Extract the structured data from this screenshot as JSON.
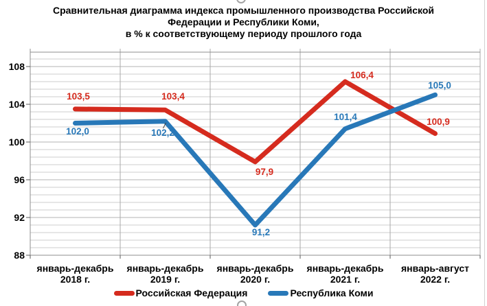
{
  "title": {
    "line1": "Сравнительная диаграмма индекса промышленного производства Российской",
    "line2": "Федерации и Республики Коми,",
    "line3": "в % к соответствующему периоду прошлого года"
  },
  "legend": [
    {
      "label": "Российская Федерация",
      "color": "#d52b1e"
    },
    {
      "label": "Республика Коми",
      "color": "#2878b8"
    }
  ],
  "chart_data": {
    "type": "line",
    "categories": [
      [
        "январь-декабрь",
        "2018 г."
      ],
      [
        "январь-декабрь",
        "2019 г."
      ],
      [
        "январь-декабрь",
        "2020 г."
      ],
      [
        "январь-декабрь",
        "2021 г."
      ],
      [
        "январь-август",
        "2022 г."
      ]
    ],
    "series": [
      {
        "name": "Российская Федерация",
        "color": "#d52b1e",
        "values": [
          103.5,
          103.4,
          97.9,
          106.4,
          100.9
        ],
        "labels": [
          "103,5",
          "103,4",
          "97,9",
          "106,4",
          "100,9"
        ]
      },
      {
        "name": "Республика Коми",
        "color": "#2878b8",
        "values": [
          102.0,
          102.2,
          91.2,
          101.4,
          105.0
        ],
        "labels": [
          "102,0",
          "102,2",
          "91,2",
          "101,4",
          "105,0"
        ]
      }
    ],
    "title": "Сравнительная диаграмма индекса промышленного производства Российской Федерации и Республики Коми, в % к соответствующему периоду прошлого года",
    "xlabel": "",
    "ylabel": "",
    "ylim": [
      88,
      110
    ],
    "yaxis": {
      "tick_labels": [
        "108",
        "104",
        "100",
        "96",
        "92",
        "88"
      ],
      "tick_values": [
        108,
        104,
        100,
        96,
        92,
        88
      ],
      "major_unit": 4,
      "minor_unit": 0.8
    },
    "grid": true,
    "legend_position": "bottom"
  },
  "ui": {
    "handles": [
      "top-center",
      "bottom-center"
    ]
  }
}
